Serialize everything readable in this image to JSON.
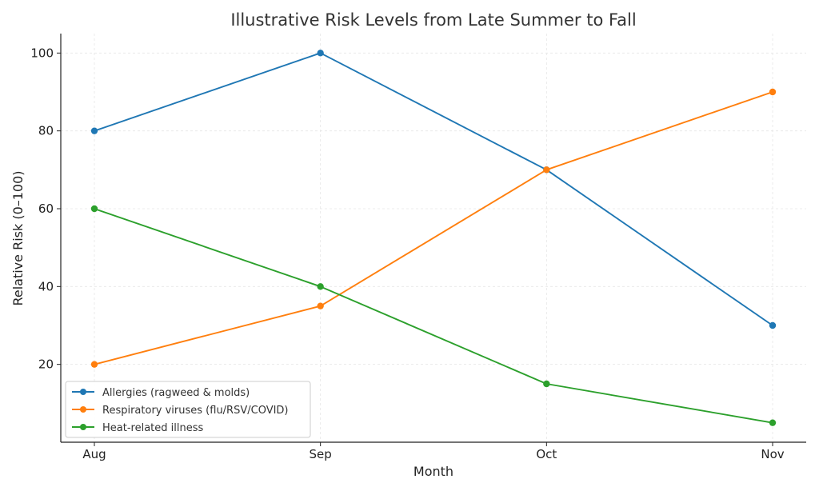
{
  "chart_data": {
    "type": "line",
    "title": "Illustrative Risk Levels from Late Summer to Fall",
    "xlabel": "Month",
    "ylabel": "Relative Risk (0–100)",
    "categories": [
      "Aug",
      "Sep",
      "Oct",
      "Nov"
    ],
    "yticks": [
      20,
      40,
      60,
      80,
      100
    ],
    "ylim": [
      0,
      105
    ],
    "grid": true,
    "legend_position": "lower-left",
    "series": [
      {
        "name": "Allergies (ragweed & molds)",
        "color": "#1f77b4",
        "values": [
          80,
          100,
          70,
          30
        ]
      },
      {
        "name": "Respiratory viruses (flu/RSV/COVID)",
        "color": "#ff7f0e",
        "values": [
          20,
          35,
          70,
          90
        ]
      },
      {
        "name": "Heat-related illness",
        "color": "#2ca02c",
        "values": [
          60,
          40,
          15,
          5
        ]
      }
    ]
  }
}
